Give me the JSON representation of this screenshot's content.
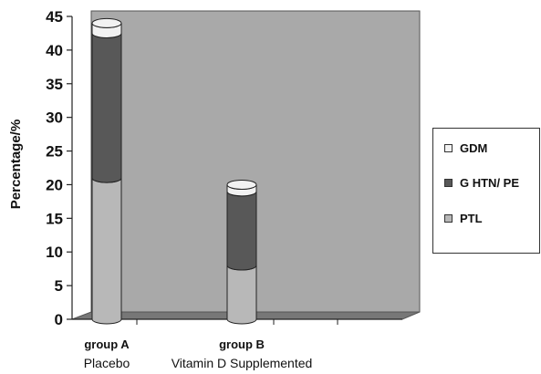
{
  "chart_data": {
    "type": "bar",
    "stacked": true,
    "style": "3d-cylinder",
    "categories": [
      "group A",
      "group B"
    ],
    "category_sublabels": [
      "Placebo",
      "Vitamin D Supplemented"
    ],
    "series": [
      {
        "name": "PTL",
        "values": [
          21,
          8
        ],
        "color": "#b8b8b8"
      },
      {
        "name": "G HTN/ PE",
        "values": [
          21.5,
          11
        ],
        "color": "#585858"
      },
      {
        "name": "GDM",
        "values": [
          1.5,
          1
        ],
        "color": "#f2f2f2"
      }
    ],
    "ylabel": "Percentage/%",
    "ylim": [
      0,
      45
    ],
    "yticks": [
      "0",
      "5",
      "10",
      "15",
      "20",
      "25",
      "30",
      "35",
      "40",
      "45"
    ],
    "grid": false,
    "legend_position": "right",
    "plot_background": "#a9a9a9"
  }
}
